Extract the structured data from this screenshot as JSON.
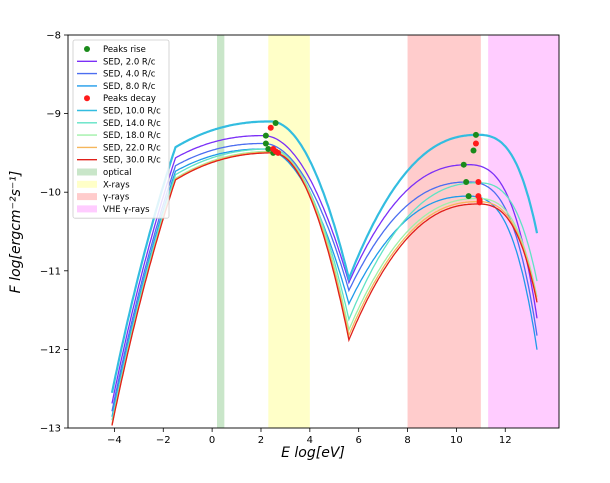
{
  "chart_data": {
    "type": "line",
    "title": "",
    "xlabel": "E log[eV]",
    "ylabel": "F log[ergcm⁻²s⁻¹]",
    "xlim": [
      -5.9,
      14.2
    ],
    "ylim": [
      -13,
      -8
    ],
    "xticks": [
      -4,
      -2,
      0,
      2,
      4,
      6,
      8,
      10,
      12
    ],
    "yticks": [
      -13,
      -12,
      -11,
      -10,
      -9,
      -8
    ],
    "xtick_labels": [
      "−4",
      "−2",
      "0",
      "2",
      "4",
      "6",
      "8",
      "10",
      "12"
    ],
    "ytick_labels": [
      "−13",
      "−12",
      "−11",
      "−10",
      "−9",
      "−8"
    ],
    "bands": [
      {
        "name": "optical",
        "x0": 0.2,
        "x1": 0.5,
        "color": "#c9e6c9"
      },
      {
        "name": "X-rays",
        "x0": 2.3,
        "x1": 4.0,
        "color": "#ffffc8"
      },
      {
        "name": "γ-rays",
        "x0": 8.0,
        "x1": 11.0,
        "color": "#ffcccc"
      },
      {
        "name": "VHE γ-rays",
        "x0": 11.3,
        "x1": 14.2,
        "color": "#ffccff"
      }
    ],
    "series": [
      {
        "name": "SED, 2.0 R/c",
        "color": "#7b2ff7",
        "sync_peak": [
          2.1,
          -9.28
        ],
        "ic_peak": [
          10.5,
          -9.65
        ],
        "dip": -11.15
      },
      {
        "name": "SED, 4.0 R/c",
        "color": "#4c6ef0",
        "sync_peak": [
          2.1,
          -9.38
        ],
        "ic_peak": [
          10.5,
          -9.87
        ],
        "dip": -11.25
      },
      {
        "name": "SED, 8.0 R/c",
        "color": "#1e9bea",
        "sync_peak": [
          2.1,
          -9.45
        ],
        "ic_peak": [
          10.5,
          -10.05
        ],
        "dip": -11.42
      },
      {
        "name": "SED, 10.0 R/c",
        "color": "#33bde0",
        "sync_peak": [
          2.4,
          -9.1
        ],
        "ic_peak": [
          10.9,
          -9.27
        ],
        "dip": -11.1
      },
      {
        "name": "SED, 14.0 R/c",
        "color": "#5fe3c4",
        "sync_peak": [
          2.4,
          -9.45
        ],
        "ic_peak": [
          10.9,
          -9.88
        ],
        "dip": -11.62
      },
      {
        "name": "SED, 18.0 R/c",
        "color": "#9ff0a8",
        "sync_peak": [
          2.5,
          -9.48
        ],
        "ic_peak": [
          10.9,
          -10.08
        ],
        "dip": -11.75
      },
      {
        "name": "SED, 22.0 R/c",
        "color": "#f5b65c",
        "sync_peak": [
          2.5,
          -9.49
        ],
        "ic_peak": [
          10.9,
          -10.12
        ],
        "dip": -11.82
      },
      {
        "name": "SED, 30.0 R/c",
        "color": "#e0201a",
        "sync_peak": [
          2.5,
          -9.5
        ],
        "ic_peak": [
          10.9,
          -10.15
        ],
        "dip": -11.88
      }
    ],
    "peaks_rise": {
      "name": "Peaks rise",
      "color": "#1a8a1a",
      "points": [
        [
          2.2,
          -9.28
        ],
        [
          2.2,
          -9.38
        ],
        [
          2.3,
          -9.45
        ],
        [
          2.5,
          -9.5
        ],
        [
          2.6,
          -9.12
        ],
        [
          10.3,
          -9.65
        ],
        [
          10.4,
          -9.87
        ],
        [
          10.5,
          -10.05
        ],
        [
          10.8,
          -9.27
        ],
        [
          10.7,
          -9.47
        ]
      ]
    },
    "peaks_decay": {
      "name": "Peaks decay",
      "color": "#ff1a1a",
      "points": [
        [
          2.4,
          -9.18
        ],
        [
          2.7,
          -9.5
        ],
        [
          2.5,
          -9.45
        ],
        [
          10.8,
          -9.38
        ],
        [
          10.9,
          -9.87
        ],
        [
          10.9,
          -10.05
        ],
        [
          10.95,
          -10.13
        ],
        [
          10.95,
          -10.1
        ],
        [
          2.6,
          -9.48
        ]
      ]
    },
    "legend": {
      "position": "top-left",
      "entries": [
        {
          "label": "Peaks rise",
          "kind": "marker",
          "color": "#1a8a1a"
        },
        {
          "label": "SED, 2.0 R/c",
          "kind": "line",
          "color": "#7b2ff7"
        },
        {
          "label": "SED, 4.0 R/c",
          "kind": "line",
          "color": "#4c6ef0"
        },
        {
          "label": "SED, 8.0 R/c",
          "kind": "line",
          "color": "#1e9bea"
        },
        {
          "label": "Peaks decay",
          "kind": "marker",
          "color": "#ff1a1a"
        },
        {
          "label": "SED, 10.0 R/c",
          "kind": "line",
          "color": "#33bde0"
        },
        {
          "label": "SED, 14.0 R/c",
          "kind": "line",
          "color": "#5fe3c4"
        },
        {
          "label": "SED, 18.0 R/c",
          "kind": "line",
          "color": "#9ff0a8"
        },
        {
          "label": "SED, 22.0 R/c",
          "kind": "line",
          "color": "#f5b65c"
        },
        {
          "label": "SED, 30.0 R/c",
          "kind": "line",
          "color": "#e0201a"
        },
        {
          "label": "optical",
          "kind": "patch",
          "color": "#c9e6c9"
        },
        {
          "label": "X-rays",
          "kind": "patch",
          "color": "#ffffc8"
        },
        {
          "label": "γ-rays",
          "kind": "patch",
          "color": "#ffcccc"
        },
        {
          "label": "VHE γ-rays",
          "kind": "patch",
          "color": "#ffccff"
        }
      ]
    }
  }
}
